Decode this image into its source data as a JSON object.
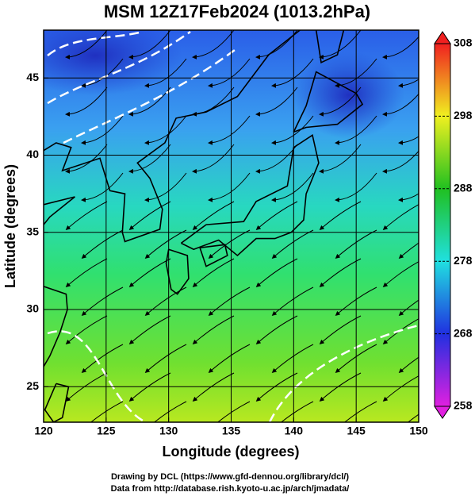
{
  "chart_data": {
    "type": "map",
    "title": "MSM 12Z17Feb2024 (1013.2hPa)",
    "x_label": "Longitude (degrees)",
    "y_label": "Latitude  (degrees)",
    "xlim": [
      120,
      150
    ],
    "xticks": [
      120,
      125,
      130,
      135,
      140,
      145,
      150
    ],
    "ylim": [
      22.7,
      48.1
    ],
    "yticks": [
      25,
      30,
      35,
      40,
      45
    ],
    "grid": true,
    "colorbar": {
      "lim": [
        258,
        308
      ],
      "ticks": [
        258,
        268,
        278,
        288,
        298,
        308
      ],
      "colors": [
        "#e020e0",
        "#2030e0",
        "#20e0e0",
        "#20c020",
        "#f0f020",
        "#f02020"
      ]
    },
    "footer": [
      "Drawing by DCL (https://www.gfd-dennou.org/library/dcl/)",
      "Data from http://database.rish.kyoto-u.ac.jp/arch/jmadata/"
    ]
  }
}
